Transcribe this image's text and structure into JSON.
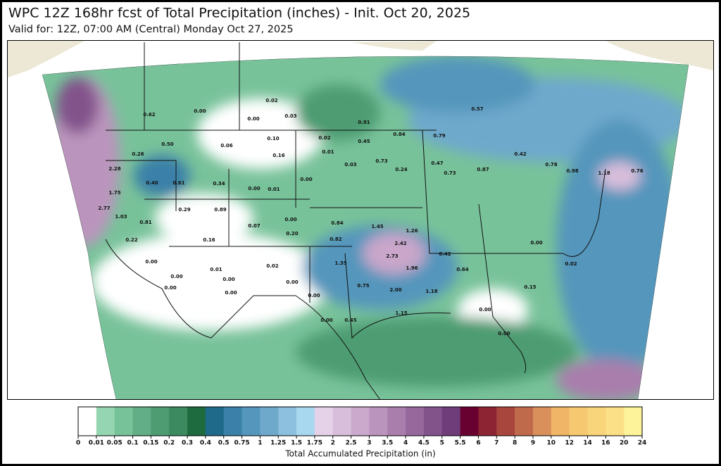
{
  "header": {
    "title": "WPC 12Z 168hr fcst of Total Precipitation (inches) - Init. Oct 20, 2025",
    "subtitle": "Valid for: 12Z, 07:00 AM (Central) Monday Oct 27, 2025"
  },
  "map": {
    "labels": [
      "0.00",
      "0.02",
      "0.03",
      "0.00",
      "0.62",
      "0.91",
      "0.57",
      "0.84",
      "0.79",
      "0.10",
      "0.06",
      "0.50",
      "0.26",
      "0.16",
      "0.02",
      "0.01",
      "0.45",
      "0.42",
      "0.03",
      "0.73",
      "0.24",
      "0.47",
      "0.73",
      "0.87",
      "0.78",
      "0.98",
      "1.18",
      "0.76",
      "2.28",
      "0.40",
      "0.61",
      "0.34",
      "0.00",
      "0.01",
      "0.00",
      "1.75",
      "2.77",
      "1.03",
      "0.29",
      "0.89",
      "0.81",
      "0.07",
      "0.00",
      "0.20",
      "0.84",
      "1.45",
      "1.26",
      "0.82",
      "2.42",
      "0.16",
      "0.22",
      "0.00",
      "0.01",
      "0.02",
      "1.35",
      "2.73",
      "1.96",
      "0.75",
      "2.00",
      "1.18",
      "0.00",
      "0.00",
      "0.00",
      "0.00",
      "0.00",
      "0.00",
      "1.15",
      "0.45",
      "0.00",
      "0.64",
      "0.42",
      "0.00",
      "0.02",
      "0.15",
      "0.00",
      "0.00"
    ]
  },
  "legend": {
    "title": "Total Accumulated Precipitation (in)",
    "ticks": [
      0,
      0.01,
      0.05,
      0.1,
      0.15,
      0.2,
      0.3,
      0.4,
      0.5,
      0.75,
      1,
      1.25,
      1.5,
      1.75,
      2,
      2.5,
      3,
      3.5,
      4,
      4.5,
      5,
      5.5,
      6,
      7,
      8,
      9,
      10,
      12,
      14,
      16,
      20,
      24
    ],
    "colors": [
      "#ffffff",
      "#95d5b2",
      "#78c29a",
      "#62ae86",
      "#4e9c72",
      "#3b8a60",
      "#1e6b40",
      "#1f6a8a",
      "#3a80a8",
      "#5596bc",
      "#6ea9cc",
      "#8cc0de",
      "#a8d8ef",
      "#e6d2e8",
      "#d9bedb",
      "#cba9cc",
      "#bb94bd",
      "#a97eac",
      "#96689c",
      "#82528b",
      "#6e3d7a",
      "#680030",
      "#8c2434",
      "#a8463e",
      "#c06a4c",
      "#d9905a",
      "#f0b566",
      "#f6c870",
      "#f8d47a",
      "#fbe088",
      "#fdf39a"
    ]
  }
}
